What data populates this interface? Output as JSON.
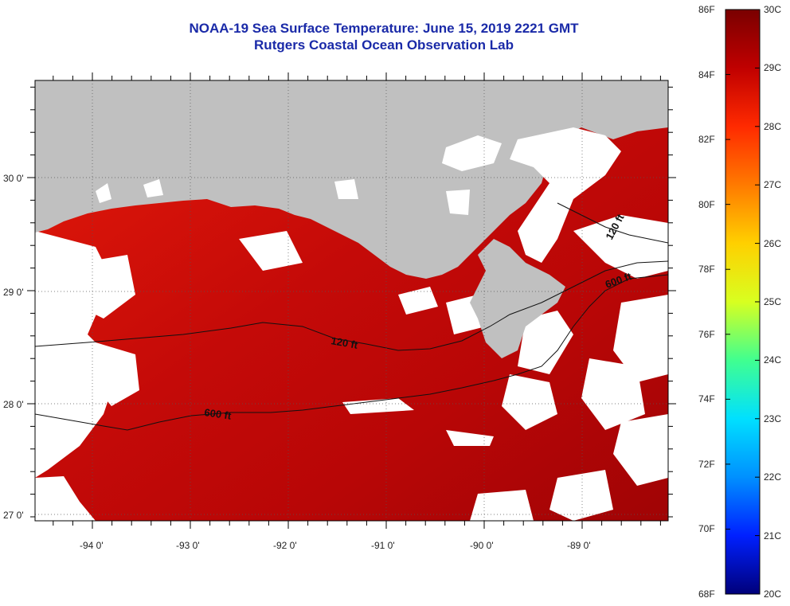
{
  "title": {
    "line1": "NOAA-19 Sea Surface Temperature:  June 15, 2019 2221 GMT",
    "line2": "Rutgers Coastal Ocean Observation Lab"
  },
  "map": {
    "lat_labels": [
      "30 0'",
      "29 0'",
      "28 0'",
      "27 0'"
    ],
    "lon_labels": [
      "-94 0'",
      "-93 0'",
      "-92 0'",
      "-91 0'",
      "-90 0'",
      "-89 0'"
    ],
    "contours": [
      {
        "label": "120 ft"
      },
      {
        "label": "600 ft"
      },
      {
        "label": "120 ft"
      },
      {
        "label": "600 ft"
      }
    ]
  },
  "colorbar": {
    "fahrenheit": [
      "86F",
      "84F",
      "82F",
      "80F",
      "78F",
      "76F",
      "74F",
      "72F",
      "70F",
      "68F"
    ],
    "celsius": [
      "30C",
      "29C",
      "28C",
      "27C",
      "26C",
      "25C",
      "24C",
      "23C",
      "22C",
      "21C",
      "20C"
    ],
    "colors": [
      "#7a0000",
      "#c00000",
      "#ff2a00",
      "#ff7a00",
      "#ffd000",
      "#d8ff20",
      "#40ff90",
      "#00e0ff",
      "#0090ff",
      "#0020ff",
      "#00007a"
    ]
  },
  "colors": {
    "title": "#1a2aa8",
    "land": "#c0c0c0",
    "cloud": "#ffffff"
  }
}
